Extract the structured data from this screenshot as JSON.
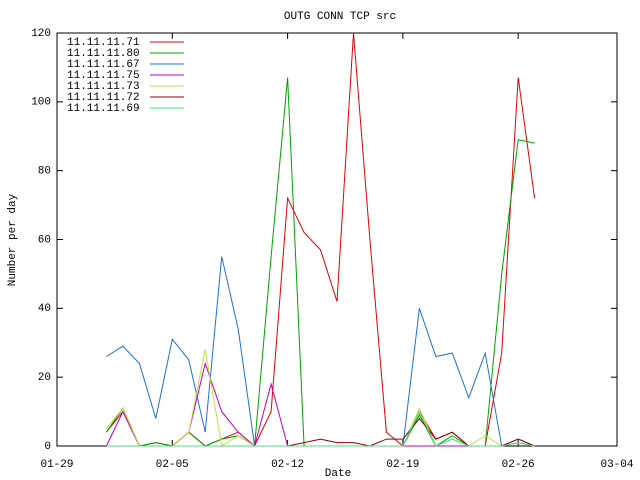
{
  "chart_data": {
    "type": "line",
    "title": "OUTG CONN TCP src",
    "x_label": "Date",
    "y_label": "Number per day",
    "x": [
      "02-01",
      "02-02",
      "02-03",
      "02-04",
      "02-05",
      "02-06",
      "02-07",
      "02-08",
      "02-09",
      "02-10",
      "02-11",
      "02-12",
      "02-13",
      "02-14",
      "02-15",
      "02-16",
      "02-17",
      "02-18",
      "02-19",
      "02-20",
      "02-21",
      "02-22",
      "02-23",
      "02-24",
      "02-25",
      "02-26",
      "02-27"
    ],
    "xlim": [
      "01-29",
      "03-04"
    ],
    "xticks": [
      "01-29",
      "02-05",
      "02-12",
      "02-19",
      "02-26",
      "03-04"
    ],
    "ylim": [
      0,
      120
    ],
    "yticks": [
      0,
      20,
      40,
      60,
      80,
      100,
      120
    ],
    "legend": "top-left",
    "series": [
      {
        "name": "11.11.11.71",
        "color": "#e00000",
        "values": [
          4,
          10,
          0,
          1,
          0,
          4,
          0,
          2,
          4,
          0,
          10,
          72,
          62,
          57,
          42,
          120,
          60,
          4,
          0,
          10,
          2,
          4,
          0,
          0,
          27,
          107,
          72
        ]
      },
      {
        "name": "11.11.11.80",
        "color": "#00a000",
        "values": [
          4,
          11,
          0,
          1,
          0,
          4,
          0,
          2,
          3,
          0,
          55,
          107,
          0,
          0,
          0,
          0,
          0,
          0,
          0,
          9,
          0,
          3,
          0,
          0,
          50,
          89,
          88
        ]
      },
      {
        "name": "11.11.11.67",
        "color": "#2070d0",
        "values": [
          26,
          29,
          24,
          8,
          31,
          25,
          4,
          55,
          34,
          0,
          0,
          0,
          0,
          0,
          0,
          0,
          0,
          0,
          0,
          40,
          26,
          27,
          14,
          27,
          0,
          2,
          0
        ]
      },
      {
        "name": "11.11.11.75",
        "color": "#c000c0",
        "values": [
          0,
          10,
          0,
          0,
          0,
          4,
          24,
          10,
          4,
          0,
          18,
          0,
          0,
          0,
          0,
          0,
          0,
          0,
          0,
          0,
          0,
          0,
          0,
          0,
          0,
          1,
          0
        ]
      },
      {
        "name": "11.11.11.73",
        "color": "#c0e040",
        "values": [
          5,
          11,
          0,
          0,
          0,
          4,
          28,
          0,
          3,
          0,
          0,
          0,
          0,
          0,
          0,
          0,
          0,
          0,
          0,
          11,
          0,
          2,
          0,
          3,
          0,
          1,
          0
        ]
      },
      {
        "name": "11.11.11.72",
        "color": "#900000",
        "values": [
          0,
          0,
          0,
          0,
          0,
          0,
          0,
          0,
          0,
          0,
          0,
          0,
          1,
          2,
          1,
          1,
          0,
          2,
          2,
          8,
          2,
          4,
          0,
          0,
          0,
          2,
          0
        ]
      },
      {
        "name": "11.11.11.69",
        "color": "#40e080",
        "values": [
          0,
          0,
          0,
          0,
          0,
          0,
          0,
          0,
          0,
          0,
          0,
          0,
          0,
          0,
          0,
          0,
          0,
          0,
          0,
          10,
          0,
          2,
          0,
          0,
          0,
          1,
          0
        ]
      }
    ]
  }
}
